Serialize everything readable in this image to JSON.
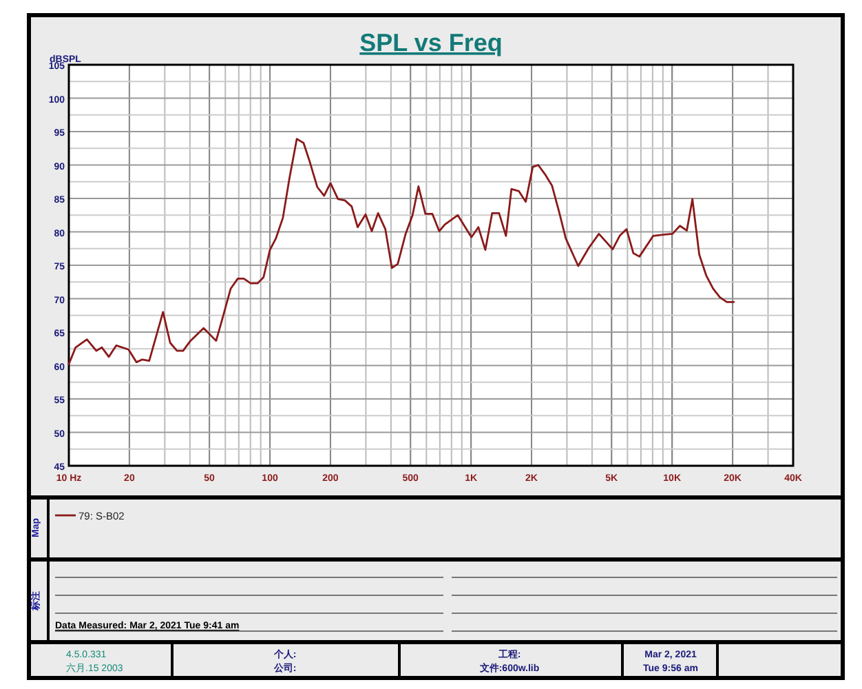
{
  "chart_data": {
    "type": "line",
    "title": "SPL vs Freq",
    "ylabel": "dBSPL",
    "x": [
      10,
      10.8,
      12.3,
      13.7,
      14.6,
      15.8,
      17.2,
      19.8,
      21.7,
      23.2,
      25.1,
      29.4,
      31.9,
      34.5,
      37,
      40,
      46.8,
      54,
      58.4,
      63.8,
      69.2,
      74.1,
      80.2,
      86.8,
      92.9,
      100,
      107,
      116,
      125,
      136,
      147,
      157,
      172,
      186,
      200,
      218,
      236,
      255,
      273,
      299,
      321,
      345,
      375,
      404,
      432,
      473,
      512,
      548,
      593,
      642,
      695,
      741,
      859,
      1005,
      1088,
      1178,
      1274,
      1379,
      1492,
      1589,
      1728,
      1871,
      2027,
      2159,
      2336,
      2529,
      2736,
      2961,
      3412,
      3853,
      4326,
      5067,
      5486,
      5935,
      6421,
      6880,
      8058,
      9190,
      10040,
      10940,
      11840,
      12620,
      13650,
      14770,
      15990,
      17300,
      18720,
      20270
    ],
    "series": [
      {
        "name": "79: S-B02",
        "color": "#8b1a1a",
        "values": [
          60.2,
          62.7,
          63.9,
          62.2,
          62.7,
          61.3,
          63.0,
          62.4,
          60.5,
          60.9,
          60.7,
          68.0,
          63.4,
          62.2,
          62.2,
          63.6,
          65.6,
          63.7,
          67.3,
          71.5,
          73.0,
          73.0,
          72.3,
          72.3,
          73.2,
          77.3,
          79.0,
          82.1,
          88.0,
          93.9,
          93.3,
          90.7,
          86.7,
          85.4,
          87.3,
          84.9,
          84.7,
          83.8,
          80.7,
          82.6,
          80.1,
          82.8,
          80.4,
          74.6,
          75.2,
          79.7,
          82.5,
          86.8,
          82.7,
          82.7,
          80.1,
          81.1,
          82.5,
          79.2,
          80.7,
          77.3,
          82.8,
          82.8,
          79.4,
          86.4,
          86.1,
          84.5,
          89.7,
          90.0,
          88.6,
          86.9,
          83.1,
          79.0,
          74.9,
          77.6,
          79.7,
          77.4,
          79.4,
          80.4,
          76.8,
          76.3,
          79.4,
          79.6,
          79.7,
          80.9,
          80.2,
          84.9,
          76.6,
          73.5,
          71.5,
          70.2,
          69.5,
          69.5
        ]
      }
    ],
    "log": "x",
    "xlim": [
      10,
      40000
    ],
    "xticks": [
      {
        "value": 10,
        "label": "10  Hz"
      },
      20,
      50,
      100,
      200,
      500,
      {
        "value": 1000,
        "label": "1K"
      },
      {
        "value": 2000,
        "label": "2K"
      },
      {
        "value": 5000,
        "label": "5K"
      },
      {
        "value": 10000,
        "label": "10K"
      },
      {
        "value": 20000,
        "label": "20K"
      },
      {
        "value": 40000,
        "label": "40K"
      }
    ],
    "ylim": [
      45,
      105
    ],
    "yticks": [
      45,
      50,
      55,
      60,
      65,
      70,
      75,
      80,
      85,
      90,
      95,
      100,
      105
    ],
    "grid": true,
    "legend": "bottom",
    "marker": "none",
    "line_style": "solid",
    "annotations": [
      "Map",
      "标注",
      "Data Measured: Mar 2, 2021  Tue  9:41 am",
      "4.5.0.331",
      "六月.15 2003",
      "个人:",
      "公司:",
      "工程:",
      "文件:600w.lib",
      "Mar 2, 2021",
      "Tue  9:56 am"
    ]
  }
}
